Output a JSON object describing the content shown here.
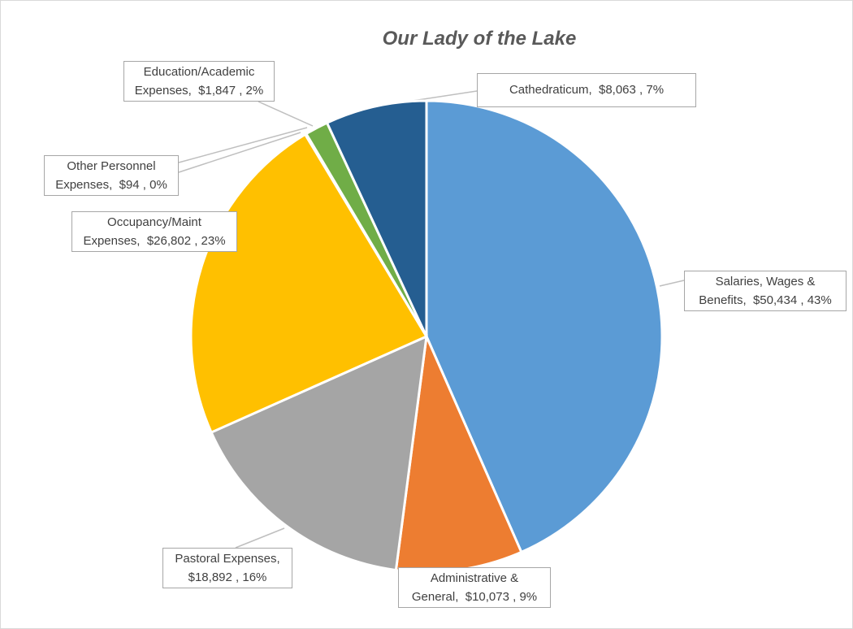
{
  "chart_data": {
    "type": "pie",
    "title": "Our Lady of the Lake",
    "slices": [
      {
        "name": "Salaries, Wages & Benefits",
        "value": 50434,
        "percent": "43%",
        "color": "#5b9bd5",
        "label_line1": "Salaries, Wages &",
        "label_line2": "Benefits,  $50,434 , 43%"
      },
      {
        "name": "Administrative & General",
        "value": 10073,
        "percent": "9%",
        "color": "#ed7d31",
        "label_line1": "Administrative &",
        "label_line2": "General,  $10,073 , 9%"
      },
      {
        "name": "Pastoral Expenses",
        "value": 18892,
        "percent": "16%",
        "color": "#a5a5a5",
        "label_line1": "Pastoral Expenses,",
        "label_line2": "$18,892 , 16%"
      },
      {
        "name": "Occupancy/Maint Expenses",
        "value": 26802,
        "percent": "23%",
        "color": "#ffc000",
        "label_line1": "Occupancy/Maint",
        "label_line2": "Expenses,  $26,802 , 23%"
      },
      {
        "name": "Other Personnel Expenses",
        "value": 94,
        "percent": "0%",
        "color": "#4472c4",
        "label_line1": "Other Personnel",
        "label_line2": "Expenses,  $94 , 0%"
      },
      {
        "name": "Education/Academic Expenses",
        "value": 1847,
        "percent": "2%",
        "color": "#70ad47",
        "label_line1": "Education/Academic",
        "label_line2": "Expenses,  $1,847 , 2%"
      },
      {
        "name": "Cathedraticum",
        "value": 8063,
        "percent": "7%",
        "color": "#255e91",
        "label_line1": "Cathedraticum,  $8,063 , 7%",
        "label_line2": ""
      }
    ]
  }
}
